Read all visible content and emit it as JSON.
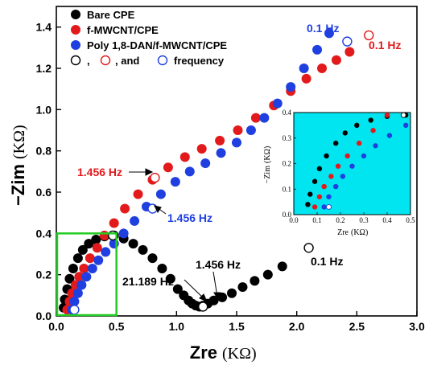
{
  "colors": {
    "bare": "#000000",
    "fmwcnt": "#e31a1c",
    "poly": "#1f3fe0",
    "inset_bg": "#00e5f0",
    "box": "#22cc22"
  },
  "chart_data": {
    "type": "scatter",
    "xlabel": "Zre",
    "xunit": "(KΩ)",
    "ylabel": "−Zim",
    "yunit": "(KΩ)",
    "xlim": [
      0.0,
      3.0
    ],
    "ylim": [
      0.0,
      1.5
    ],
    "xticks": [
      "0.0",
      "0.5",
      "1.0",
      "1.5",
      "2.0",
      "2.5",
      "3.0"
    ],
    "yticks": [
      "0.0",
      "0.2",
      "0.4",
      "0.6",
      "0.8",
      "1.0",
      "1.2",
      "1.4"
    ],
    "legend_position": "top-left",
    "legend": {
      "bare": "Bare CPE",
      "fmwcnt": "f-MWCNT/CPE",
      "poly": "Poly 1,8-DAN/f-MWCNT/CPE",
      "freq_comma1": ",",
      "freq_comma2": ", and",
      "freq_word": "frequency"
    },
    "series": [
      {
        "name": "Bare CPE",
        "key": "bare",
        "x": [
          0.06,
          0.07,
          0.09,
          0.11,
          0.14,
          0.18,
          0.22,
          0.27,
          0.33,
          0.4,
          0.48,
          0.56,
          0.64,
          0.72,
          0.8,
          0.88,
          0.95,
          1.01,
          1.06,
          1.1,
          1.13,
          1.16,
          1.19,
          1.22,
          1.26,
          1.31,
          1.38,
          1.46,
          1.55,
          1.65,
          1.76,
          1.88
        ],
        "y": [
          0.04,
          0.08,
          0.13,
          0.18,
          0.23,
          0.28,
          0.32,
          0.35,
          0.37,
          0.385,
          0.39,
          0.375,
          0.35,
          0.32,
          0.28,
          0.23,
          0.18,
          0.13,
          0.1,
          0.075,
          0.06,
          0.05,
          0.045,
          0.05,
          0.06,
          0.075,
          0.09,
          0.11,
          0.14,
          0.17,
          0.2,
          0.24
        ]
      },
      {
        "name": "f-MWCNT/CPE",
        "key": "fmwcnt",
        "x": [
          0.09,
          0.11,
          0.13,
          0.16,
          0.19,
          0.23,
          0.28,
          0.34,
          0.4,
          0.48,
          0.57,
          0.68,
          0.8,
          0.93,
          1.07,
          1.21,
          1.36,
          1.51,
          1.66,
          1.81,
          1.95,
          2.08,
          2.21,
          2.33,
          2.44
        ],
        "y": [
          0.03,
          0.07,
          0.11,
          0.15,
          0.19,
          0.23,
          0.28,
          0.33,
          0.39,
          0.45,
          0.52,
          0.59,
          0.66,
          0.72,
          0.77,
          0.81,
          0.85,
          0.9,
          0.96,
          1.02,
          1.09,
          1.15,
          1.2,
          1.24,
          1.28
        ]
      },
      {
        "name": "Poly 1,8-DAN/f-MWCNT/CPE",
        "key": "poly",
        "x": [
          0.13,
          0.15,
          0.18,
          0.21,
          0.25,
          0.3,
          0.35,
          0.41,
          0.48,
          0.56,
          0.65,
          0.75,
          0.87,
          0.99,
          1.11,
          1.24,
          1.37,
          1.5,
          1.62,
          1.73,
          1.84,
          1.95,
          2.06,
          2.17,
          2.27
        ],
        "y": [
          0.03,
          0.07,
          0.11,
          0.15,
          0.19,
          0.23,
          0.27,
          0.31,
          0.35,
          0.4,
          0.46,
          0.53,
          0.59,
          0.65,
          0.7,
          0.74,
          0.79,
          0.84,
          0.9,
          0.96,
          1.03,
          1.11,
          1.2,
          1.29,
          1.37
        ]
      }
    ],
    "open_markers": [
      {
        "key": "bare",
        "x": [
          0.47,
          1.22,
          2.1
        ],
        "y": [
          0.39,
          0.045,
          0.33
        ]
      },
      {
        "key": "fmwcnt",
        "x": [
          0.82,
          2.6
        ],
        "y": [
          0.67,
          1.36
        ]
      },
      {
        "key": "poly",
        "x": [
          0.8,
          2.42,
          0.15
        ],
        "y": [
          0.52,
          1.33,
          0.03
        ]
      }
    ],
    "annotations": [
      {
        "text": "0.1 Hz",
        "key": "poly"
      },
      {
        "text": "0.1 Hz",
        "key": "fmwcnt"
      },
      {
        "text": "1.456 Hz",
        "key": "fmwcnt"
      },
      {
        "text": "1.456 Hz",
        "key": "poly"
      },
      {
        "text": "1.456 Hz",
        "key": "bare"
      },
      {
        "text": "21.189 Hz",
        "key": "bare"
      },
      {
        "text": "0.1 Hz",
        "key": "bare"
      }
    ],
    "zoom_box": {
      "x": [
        0.0,
        0.5
      ],
      "y": [
        0.0,
        0.4
      ]
    },
    "inset": {
      "xlabel": "Zre",
      "xunit": "(KΩ)",
      "ylabel": "−Zim",
      "yunit": "(KΩ)",
      "xlim": [
        0.0,
        0.5
      ],
      "ylim": [
        0.0,
        0.4
      ],
      "xticks": [
        "0.0",
        "0.1",
        "0.2",
        "0.3",
        "0.4",
        "0.5"
      ],
      "yticks": [
        "0.0",
        "0.1",
        "0.2",
        "0.3",
        "0.4"
      ]
    }
  }
}
